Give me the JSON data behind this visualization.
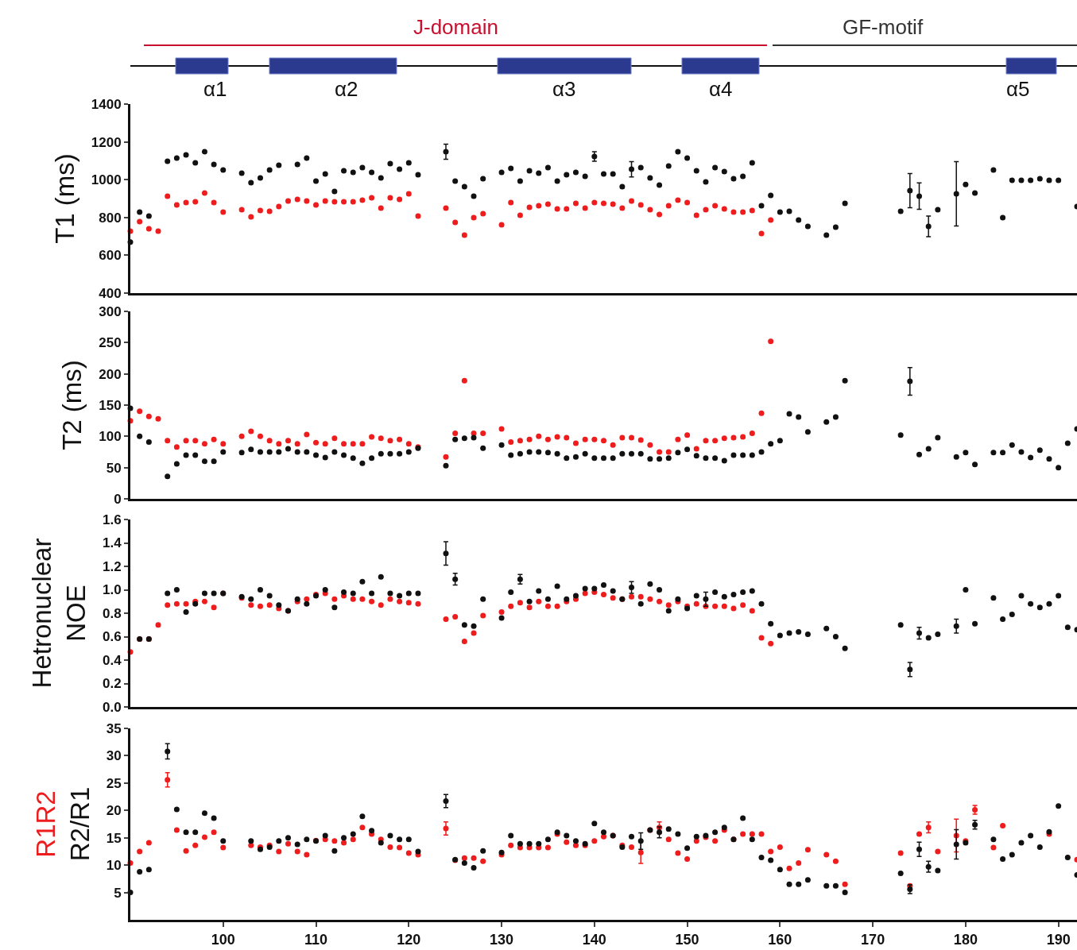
{
  "chart_data": [
    {
      "type": "other",
      "annotations": [
        "J-domain",
        "GF-motif",
        "α1",
        "α2",
        "α3",
        "α4",
        "α5"
      ]
    },
    {
      "type": "scatter",
      "ylabel": "T1 (ms)",
      "xlim": [
        90,
        192
      ],
      "xticks": [
        100,
        110,
        120,
        130,
        140,
        150,
        160,
        170,
        180,
        190
      ],
      "ylim": [
        400,
        1400
      ],
      "yticks": [
        400,
        600,
        800,
        1000,
        1200,
        1400
      ],
      "tick_labels": "y",
      "marker": "circle",
      "series": [
        {
          "color": "#ee1c1c",
          "x": [
            90,
            91,
            92,
            93,
            94,
            95,
            96,
            97,
            98,
            99,
            100,
            102,
            103,
            104,
            105,
            106,
            107,
            108,
            109,
            110,
            111,
            112,
            113,
            114,
            115,
            116,
            117,
            118,
            119,
            120,
            121,
            124,
            125,
            126,
            127,
            128,
            130,
            131,
            132,
            133,
            134,
            135,
            136,
            137,
            138,
            139,
            140,
            141,
            142,
            143,
            144,
            145,
            146,
            147,
            148,
            149,
            150,
            151,
            152,
            153,
            154,
            155,
            156,
            157,
            158,
            159
          ],
          "values": [
            728,
            778,
            740,
            728,
            913,
            866,
            879,
            883,
            929,
            879,
            829,
            841,
            803,
            837,
            833,
            858,
            887,
            896,
            887,
            866,
            887,
            883,
            883,
            883,
            892,
            904,
            850,
            904,
            896,
            925,
            808,
            850,
            774,
            707,
            799,
            820,
            761,
            879,
            812,
            854,
            862,
            871,
            845,
            845,
            875,
            850,
            879,
            875,
            871,
            850,
            887,
            866,
            841,
            816,
            862,
            892,
            879,
            812,
            841,
            862,
            845,
            829,
            829,
            837,
            715,
            787
          ]
        },
        {
          "color": "#111111",
          "x": [
            90,
            91,
            92,
            94,
            95,
            96,
            97,
            98,
            99,
            100,
            102,
            103,
            104,
            105,
            106,
            108,
            109,
            110,
            111,
            112,
            113,
            114,
            115,
            116,
            117,
            118,
            119,
            120,
            121,
            124,
            125,
            126,
            127,
            128,
            130,
            131,
            132,
            133,
            134,
            135,
            136,
            137,
            138,
            139,
            140,
            141,
            142,
            143,
            144,
            145,
            146,
            147,
            148,
            149,
            150,
            151,
            152,
            153,
            154,
            155,
            156,
            157,
            158,
            159,
            160,
            161,
            162,
            163,
            165,
            166,
            167,
            173,
            174,
            175,
            176,
            177,
            179,
            180,
            181,
            183,
            184,
            185,
            186,
            187,
            188,
            189,
            190,
            192
          ],
          "values": [
            670,
            829,
            808,
            1097,
            1114,
            1131,
            1089,
            1148,
            1081,
            1051,
            1034,
            984,
            1009,
            1051,
            1076,
            1081,
            1114,
            992,
            1030,
            938,
            1047,
            1039,
            1064,
            1039,
            1009,
            1085,
            1055,
            1089,
            1026,
            1148,
            992,
            963,
            913,
            1005,
            1039,
            1060,
            992,
            1047,
            1034,
            1064,
            992,
            1026,
            1039,
            1018,
            1123,
            1030,
            1030,
            963,
            1055,
            1064,
            1009,
            971,
            1072,
            1148,
            1114,
            1047,
            988,
            1064,
            1043,
            1005,
            1018,
            1089,
            862,
            917,
            829,
            833,
            787,
            753,
            707,
            749,
            875,
            833,
            942,
            913,
            753,
            841,
            925,
            975,
            929,
            1051,
            799,
            997,
            997,
            997,
            1005,
            997,
            997,
            858
          ],
          "errors": [
            null,
            null,
            null,
            null,
            null,
            null,
            null,
            null,
            null,
            null,
            null,
            null,
            null,
            null,
            null,
            null,
            null,
            null,
            null,
            null,
            null,
            null,
            null,
            null,
            null,
            null,
            null,
            null,
            null,
            40,
            null,
            null,
            null,
            null,
            null,
            null,
            null,
            null,
            null,
            null,
            null,
            null,
            null,
            null,
            25,
            null,
            null,
            null,
            40,
            null,
            null,
            null,
            null,
            null,
            null,
            null,
            null,
            null,
            null,
            null,
            null,
            null,
            null,
            null,
            null,
            null,
            null,
            null,
            null,
            null,
            null,
            null,
            90,
            70,
            55,
            null,
            170,
            null,
            null,
            null,
            null,
            null,
            null,
            null,
            null,
            null,
            null,
            null
          ]
        }
      ]
    },
    {
      "type": "scatter",
      "ylabel": "T2 (ms)",
      "xlim": [
        90,
        192
      ],
      "xticks": [
        100,
        110,
        120,
        130,
        140,
        150,
        160,
        170,
        180,
        190
      ],
      "ylim": [
        0,
        300
      ],
      "yticks": [
        0,
        50,
        100,
        150,
        200,
        250,
        300
      ],
      "tick_labels": "y",
      "marker": "circle",
      "series": [
        {
          "color": "#ee1c1c",
          "x": [
            90,
            91,
            92,
            93,
            94,
            95,
            96,
            97,
            98,
            99,
            100,
            102,
            103,
            104,
            105,
            106,
            107,
            108,
            109,
            110,
            111,
            112,
            113,
            114,
            115,
            116,
            117,
            118,
            119,
            120,
            121,
            124,
            125,
            126,
            127,
            128,
            130,
            131,
            132,
            133,
            134,
            135,
            136,
            137,
            138,
            139,
            140,
            141,
            142,
            143,
            144,
            145,
            146,
            147,
            148,
            149,
            150,
            151,
            152,
            153,
            154,
            155,
            156,
            157,
            158,
            159
          ],
          "values": [
            125,
            140,
            132,
            128,
            93,
            83,
            93,
            93,
            88,
            95,
            88,
            100,
            108,
            100,
            93,
            88,
            93,
            88,
            103,
            90,
            88,
            97,
            88,
            88,
            88,
            99,
            97,
            93,
            95,
            88,
            83,
            67,
            105,
            189,
            105,
            105,
            112,
            91,
            93,
            95,
            100,
            95,
            99,
            98,
            89,
            95,
            95,
            93,
            86,
            98,
            98,
            94,
            86,
            75,
            75,
            95,
            102,
            80,
            93,
            93,
            97,
            98,
            99,
            105,
            137,
            252
          ]
        },
        {
          "color": "#111111",
          "x": [
            90,
            91,
            92,
            94,
            95,
            96,
            97,
            98,
            99,
            100,
            102,
            103,
            104,
            105,
            106,
            107,
            108,
            109,
            110,
            111,
            112,
            113,
            114,
            115,
            116,
            117,
            118,
            119,
            120,
            121,
            124,
            125,
            126,
            127,
            128,
            130,
            131,
            132,
            133,
            134,
            135,
            136,
            137,
            138,
            139,
            140,
            141,
            142,
            143,
            144,
            145,
            146,
            147,
            148,
            149,
            150,
            151,
            152,
            153,
            154,
            155,
            156,
            157,
            158,
            159,
            160,
            161,
            162,
            163,
            165,
            166,
            167,
            173,
            174,
            175,
            176,
            177,
            179,
            180,
            181,
            183,
            184,
            185,
            186,
            187,
            188,
            189,
            190,
            191,
            192
          ],
          "values": [
            145,
            100,
            91,
            36,
            56,
            70,
            70,
            60,
            60,
            75,
            74,
            79,
            75,
            75,
            75,
            80,
            75,
            75,
            70,
            66,
            75,
            70,
            65,
            57,
            65,
            72,
            72,
            72,
            75,
            81,
            53,
            95,
            97,
            98,
            81,
            86,
            70,
            72,
            75,
            75,
            74,
            72,
            65,
            67,
            72,
            65,
            65,
            65,
            72,
            72,
            72,
            64,
            64,
            65,
            74,
            79,
            69,
            65,
            65,
            61,
            70,
            70,
            70,
            75,
            88,
            93,
            136,
            131,
            107,
            123,
            131,
            189,
            102,
            188,
            71,
            80,
            98,
            67,
            74,
            55,
            74,
            74,
            86,
            75,
            66,
            78,
            64,
            50,
            89,
            112
          ],
          "errors": [
            null,
            null,
            null,
            null,
            null,
            null,
            null,
            null,
            null,
            null,
            null,
            null,
            null,
            null,
            null,
            null,
            null,
            null,
            null,
            null,
            null,
            null,
            null,
            null,
            null,
            null,
            null,
            null,
            null,
            null,
            null,
            null,
            null,
            null,
            null,
            null,
            null,
            null,
            null,
            null,
            null,
            null,
            null,
            null,
            null,
            null,
            null,
            null,
            null,
            null,
            null,
            null,
            null,
            null,
            null,
            null,
            null,
            null,
            null,
            null,
            null,
            null,
            null,
            null,
            null,
            null,
            null,
            null,
            null,
            null,
            null,
            null,
            null,
            22,
            null,
            null,
            null,
            null,
            null,
            null,
            null,
            null,
            null,
            null,
            null,
            null,
            null,
            null,
            null,
            null
          ]
        }
      ]
    },
    {
      "type": "scatter",
      "ylabel": "Hetronuclear\nNOE",
      "xlim": [
        90,
        192
      ],
      "xticks": [
        100,
        110,
        120,
        130,
        140,
        150,
        160,
        170,
        180,
        190
      ],
      "ylim": [
        0,
        1.6
      ],
      "yticks": [
        {
          "value": 0,
          "label": "0.0"
        },
        0.2,
        0.4,
        0.6,
        0.8,
        {
          "value": 1,
          "label": "1.0"
        },
        1.2,
        1.4,
        1.6
      ],
      "tick_labels": "y",
      "marker": "circle",
      "series": [
        {
          "color": "#ee1c1c",
          "x": [
            90,
            91,
            92,
            93,
            94,
            95,
            96,
            97,
            98,
            99,
            100,
            102,
            103,
            104,
            105,
            106,
            107,
            108,
            109,
            110,
            111,
            112,
            113,
            114,
            115,
            116,
            117,
            118,
            119,
            120,
            121,
            124,
            125,
            126,
            127,
            128,
            130,
            131,
            132,
            133,
            134,
            135,
            136,
            137,
            138,
            139,
            140,
            141,
            142,
            143,
            144,
            145,
            146,
            147,
            148,
            149,
            150,
            151,
            152,
            153,
            154,
            155,
            156,
            157,
            158,
            159
          ],
          "values": [
            0.47,
            0.58,
            0.58,
            0.7,
            0.87,
            0.88,
            0.88,
            0.9,
            0.9,
            0.85,
            0.97,
            0.93,
            0.87,
            0.86,
            0.87,
            0.84,
            0.82,
            0.9,
            0.92,
            0.96,
            0.97,
            0.92,
            0.95,
            0.92,
            0.92,
            0.9,
            0.87,
            0.92,
            0.9,
            0.89,
            0.88,
            0.75,
            0.77,
            0.56,
            0.63,
            0.78,
            0.81,
            0.86,
            0.89,
            0.85,
            0.9,
            0.86,
            0.86,
            0.9,
            0.92,
            0.97,
            0.98,
            0.96,
            0.93,
            0.92,
            0.94,
            0.94,
            0.92,
            0.9,
            0.87,
            0.9,
            0.86,
            0.88,
            0.86,
            0.86,
            0.86,
            0.84,
            0.87,
            0.82,
            0.59,
            0.54
          ]
        },
        {
          "color": "#111111",
          "x": [
            91,
            92,
            94,
            95,
            96,
            97,
            98,
            99,
            100,
            102,
            103,
            104,
            105,
            106,
            107,
            108,
            109,
            110,
            111,
            112,
            113,
            114,
            115,
            116,
            117,
            118,
            119,
            120,
            121,
            124,
            125,
            126,
            127,
            128,
            130,
            131,
            132,
            133,
            134,
            135,
            136,
            137,
            138,
            139,
            140,
            141,
            142,
            143,
            144,
            145,
            146,
            147,
            148,
            149,
            150,
            151,
            152,
            153,
            154,
            155,
            156,
            157,
            158,
            159,
            160,
            161,
            162,
            163,
            165,
            166,
            167,
            173,
            174,
            175,
            176,
            177,
            179,
            180,
            181,
            183,
            184,
            185,
            186,
            187,
            188,
            189,
            190,
            191,
            192
          ],
          "values": [
            0.58,
            0.58,
            0.97,
            1.0,
            0.81,
            0.88,
            0.97,
            0.97,
            0.97,
            0.94,
            0.92,
            1.0,
            0.95,
            0.87,
            0.82,
            0.92,
            0.88,
            0.95,
            1.0,
            0.85,
            0.98,
            0.97,
            1.07,
            0.97,
            1.11,
            0.97,
            0.95,
            0.97,
            0.97,
            1.31,
            1.09,
            0.7,
            0.69,
            0.92,
            0.76,
            0.98,
            1.09,
            0.9,
            0.99,
            0.92,
            1.03,
            0.92,
            0.95,
            1.01,
            1.01,
            1.04,
            0.99,
            0.92,
            1.02,
            0.88,
            1.05,
            1.0,
            0.82,
            0.92,
            0.84,
            0.95,
            0.92,
            0.98,
            0.94,
            0.96,
            0.98,
            0.99,
            0.88,
            0.71,
            0.61,
            0.63,
            0.64,
            0.62,
            0.67,
            0.6,
            0.5,
            0.7,
            0.32,
            0.63,
            0.59,
            0.62,
            0.69,
            1.0,
            0.71,
            0.93,
            0.75,
            0.79,
            0.95,
            0.88,
            0.85,
            0.88,
            0.95,
            0.68,
            0.66
          ],
          "errors": [
            null,
            null,
            null,
            null,
            null,
            null,
            null,
            null,
            null,
            null,
            null,
            null,
            null,
            null,
            null,
            null,
            null,
            null,
            null,
            null,
            null,
            null,
            null,
            null,
            null,
            null,
            null,
            null,
            null,
            0.1,
            0.05,
            null,
            null,
            null,
            null,
            null,
            0.04,
            null,
            null,
            null,
            null,
            null,
            null,
            null,
            null,
            null,
            null,
            null,
            0.05,
            null,
            null,
            null,
            null,
            null,
            null,
            null,
            0.06,
            null,
            null,
            null,
            null,
            null,
            null,
            null,
            null,
            null,
            null,
            null,
            null,
            null,
            null,
            null,
            0.06,
            0.05,
            null,
            null,
            0.06,
            null,
            null,
            null,
            null,
            null,
            null,
            null,
            null,
            null,
            null,
            null,
            null
          ]
        }
      ]
    },
    {
      "type": "scatter",
      "xlim": [
        90,
        192
      ],
      "xticks": [
        100,
        110,
        120,
        130,
        140,
        150,
        160,
        170,
        180,
        190
      ],
      "ylim": [
        0,
        35
      ],
      "yticks": [
        5,
        10,
        15,
        20,
        25,
        30,
        35
      ],
      "marker": "circle",
      "series": [
        {
          "name": "R1R2",
          "color": "#ee1c1c",
          "x": [
            90,
            91,
            92,
            94,
            95,
            96,
            97,
            98,
            99,
            100,
            103,
            104,
            105,
            106,
            107,
            108,
            109,
            110,
            111,
            112,
            113,
            114,
            115,
            116,
            117,
            118,
            119,
            120,
            121,
            124,
            125,
            126,
            127,
            128,
            130,
            131,
            132,
            133,
            134,
            135,
            136,
            137,
            138,
            139,
            140,
            141,
            142,
            143,
            144,
            145,
            146,
            147,
            148,
            149,
            150,
            151,
            152,
            153,
            154,
            155,
            156,
            157,
            158,
            159,
            160,
            161,
            162,
            163,
            165,
            166,
            167,
            173,
            174,
            175,
            176,
            177,
            179,
            180,
            181,
            183,
            184,
            189,
            192
          ],
          "values": [
            10.4,
            12.5,
            14.1,
            25.6,
            16.4,
            12.6,
            13.6,
            15.1,
            16.0,
            13.2,
            13.6,
            13.3,
            13.6,
            12.5,
            13.9,
            12.5,
            11.9,
            14.5,
            14.7,
            14.4,
            14.1,
            14.7,
            16.9,
            15.7,
            14.7,
            13.3,
            13.2,
            12.2,
            11.9,
            16.7,
            10.9,
            11.3,
            11.3,
            10.7,
            11.9,
            13.6,
            13.2,
            13.2,
            13.2,
            13.2,
            15.7,
            14.2,
            13.6,
            13.6,
            14.4,
            15.2,
            15.4,
            13.6,
            13.3,
            12.3,
            16.4,
            16.9,
            14.7,
            12.2,
            11.1,
            14.4,
            15.1,
            14.4,
            16.4,
            14.7,
            15.7,
            15.7,
            15.7,
            12.5,
            13.3,
            9.4,
            10.4,
            12.8,
            11.9,
            10.7,
            6.5,
            12.2,
            6.2,
            15.7,
            16.9,
            12.5,
            15.4,
            14.4,
            20.1,
            13.2,
            17.2,
            15.7,
            11.0
          ],
          "errors": [
            null,
            null,
            null,
            1.3,
            null,
            null,
            null,
            null,
            null,
            null,
            null,
            null,
            null,
            null,
            null,
            null,
            null,
            null,
            null,
            null,
            null,
            null,
            null,
            null,
            null,
            null,
            null,
            null,
            null,
            1.2,
            null,
            null,
            null,
            null,
            null,
            null,
            null,
            null,
            null,
            null,
            null,
            null,
            null,
            null,
            null,
            null,
            null,
            null,
            null,
            2.0,
            null,
            1.0,
            null,
            null,
            null,
            null,
            null,
            null,
            null,
            null,
            null,
            null,
            null,
            null,
            null,
            null,
            null,
            null,
            null,
            null,
            null,
            null,
            null,
            null,
            1.0,
            null,
            3.0,
            null,
            0.8,
            null,
            null,
            null,
            null
          ]
        },
        {
          "name": "R2/R1",
          "color": "#111111",
          "x": [
            90,
            91,
            92,
            94,
            95,
            96,
            97,
            98,
            99,
            100,
            103,
            104,
            105,
            106,
            107,
            108,
            109,
            110,
            111,
            112,
            113,
            114,
            115,
            116,
            117,
            118,
            119,
            120,
            121,
            124,
            125,
            126,
            127,
            128,
            130,
            131,
            132,
            133,
            134,
            135,
            136,
            137,
            138,
            139,
            140,
            141,
            142,
            143,
            144,
            145,
            146,
            147,
            148,
            149,
            150,
            151,
            152,
            153,
            154,
            155,
            156,
            157,
            158,
            159,
            160,
            161,
            162,
            163,
            165,
            166,
            167,
            173,
            174,
            175,
            176,
            177,
            179,
            180,
            181,
            183,
            184,
            185,
            186,
            187,
            188,
            189,
            190,
            191,
            192
          ],
          "values": [
            5.0,
            8.8,
            9.2,
            30.8,
            20.2,
            16.0,
            16.0,
            19.5,
            18.6,
            14.4,
            14.4,
            12.9,
            13.3,
            14.4,
            15.0,
            13.8,
            14.7,
            14.4,
            15.4,
            12.6,
            15.0,
            15.7,
            18.9,
            16.3,
            14.1,
            15.4,
            14.7,
            14.7,
            12.5,
            21.7,
            11.0,
            10.4,
            9.5,
            12.6,
            12.3,
            15.4,
            13.9,
            13.9,
            13.9,
            14.7,
            16.0,
            15.4,
            14.4,
            13.9,
            17.6,
            16.0,
            15.4,
            13.3,
            15.2,
            14.4,
            16.4,
            16.0,
            16.6,
            15.7,
            13.1,
            15.2,
            15.4,
            16.0,
            16.9,
            14.7,
            18.6,
            14.7,
            11.4,
            10.9,
            9.2,
            6.5,
            6.5,
            7.3,
            6.2,
            6.2,
            5.0,
            8.5,
            5.6,
            12.9,
            9.7,
            9.0,
            13.8,
            14.1,
            17.4,
            14.7,
            11.1,
            11.9,
            14.1,
            15.4,
            13.3,
            16.1,
            20.8,
            11.4,
            8.2
          ],
          "errors": [
            null,
            null,
            null,
            1.4,
            null,
            null,
            null,
            null,
            null,
            null,
            null,
            null,
            null,
            null,
            null,
            null,
            null,
            null,
            null,
            null,
            null,
            null,
            null,
            null,
            null,
            null,
            null,
            null,
            null,
            1.2,
            null,
            null,
            null,
            null,
            null,
            null,
            null,
            null,
            null,
            null,
            null,
            null,
            null,
            null,
            null,
            null,
            null,
            null,
            null,
            1.5,
            null,
            1.0,
            null,
            null,
            null,
            null,
            null,
            null,
            null,
            null,
            null,
            null,
            null,
            null,
            null,
            null,
            null,
            null,
            null,
            null,
            null,
            null,
            0.8,
            1.3,
            1.0,
            null,
            2.7,
            null,
            0.8,
            null,
            null,
            null,
            null,
            null,
            null,
            null,
            null,
            null,
            null
          ]
        }
      ]
    }
  ]
}
